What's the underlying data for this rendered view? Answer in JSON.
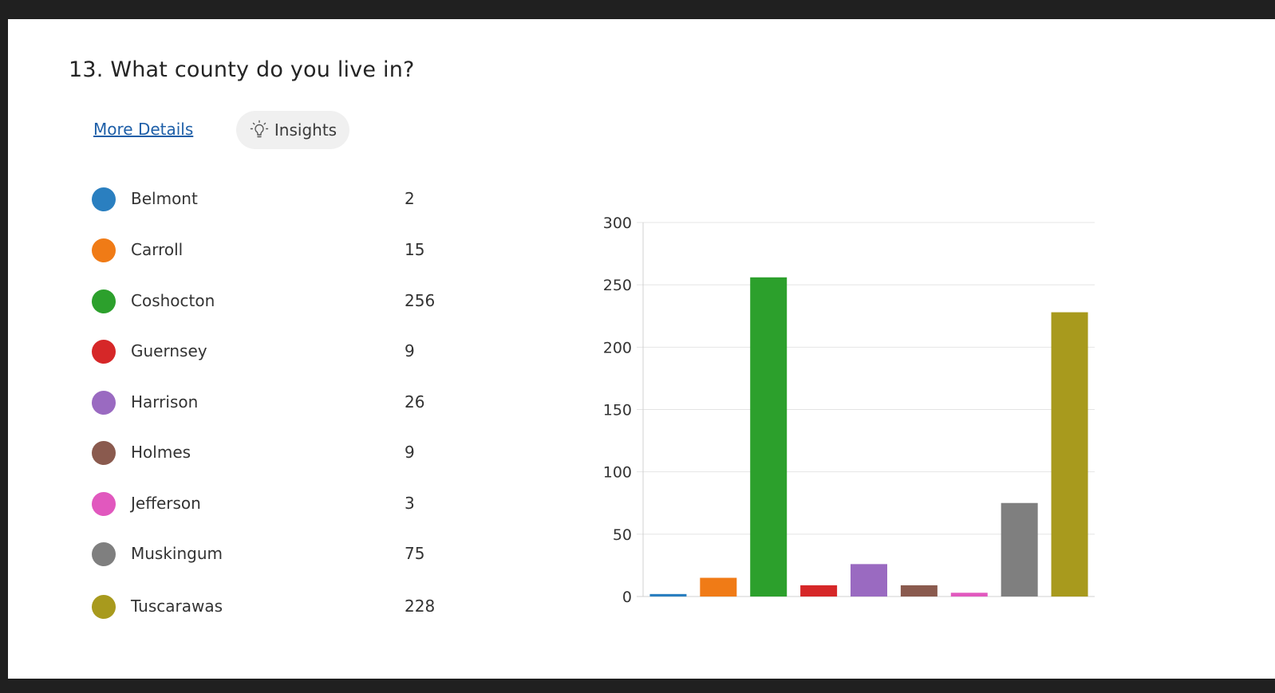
{
  "question": {
    "title": "13.  What county do you live in?",
    "more_details_label": "More Details",
    "insights_label": "Insights"
  },
  "icons": {
    "insights": "lightbulb-icon"
  },
  "chart_data": {
    "type": "bar",
    "categories": [
      "Belmont",
      "Carroll",
      "Coshocton",
      "Guernsey",
      "Harrison",
      "Holmes",
      "Jefferson",
      "Muskingum",
      "Tuscarawas"
    ],
    "values": [
      2,
      15,
      256,
      9,
      26,
      9,
      3,
      75,
      228
    ],
    "colors": [
      "#2a7fc0",
      "#f07b16",
      "#2ca02c",
      "#d62728",
      "#9a6ac1",
      "#8a5a4e",
      "#e158be",
      "#7f7f7f",
      "#a89a1d"
    ],
    "ylim": [
      0,
      300
    ],
    "yticks": [
      0,
      50,
      100,
      150,
      200,
      250,
      300
    ],
    "grid": true
  }
}
